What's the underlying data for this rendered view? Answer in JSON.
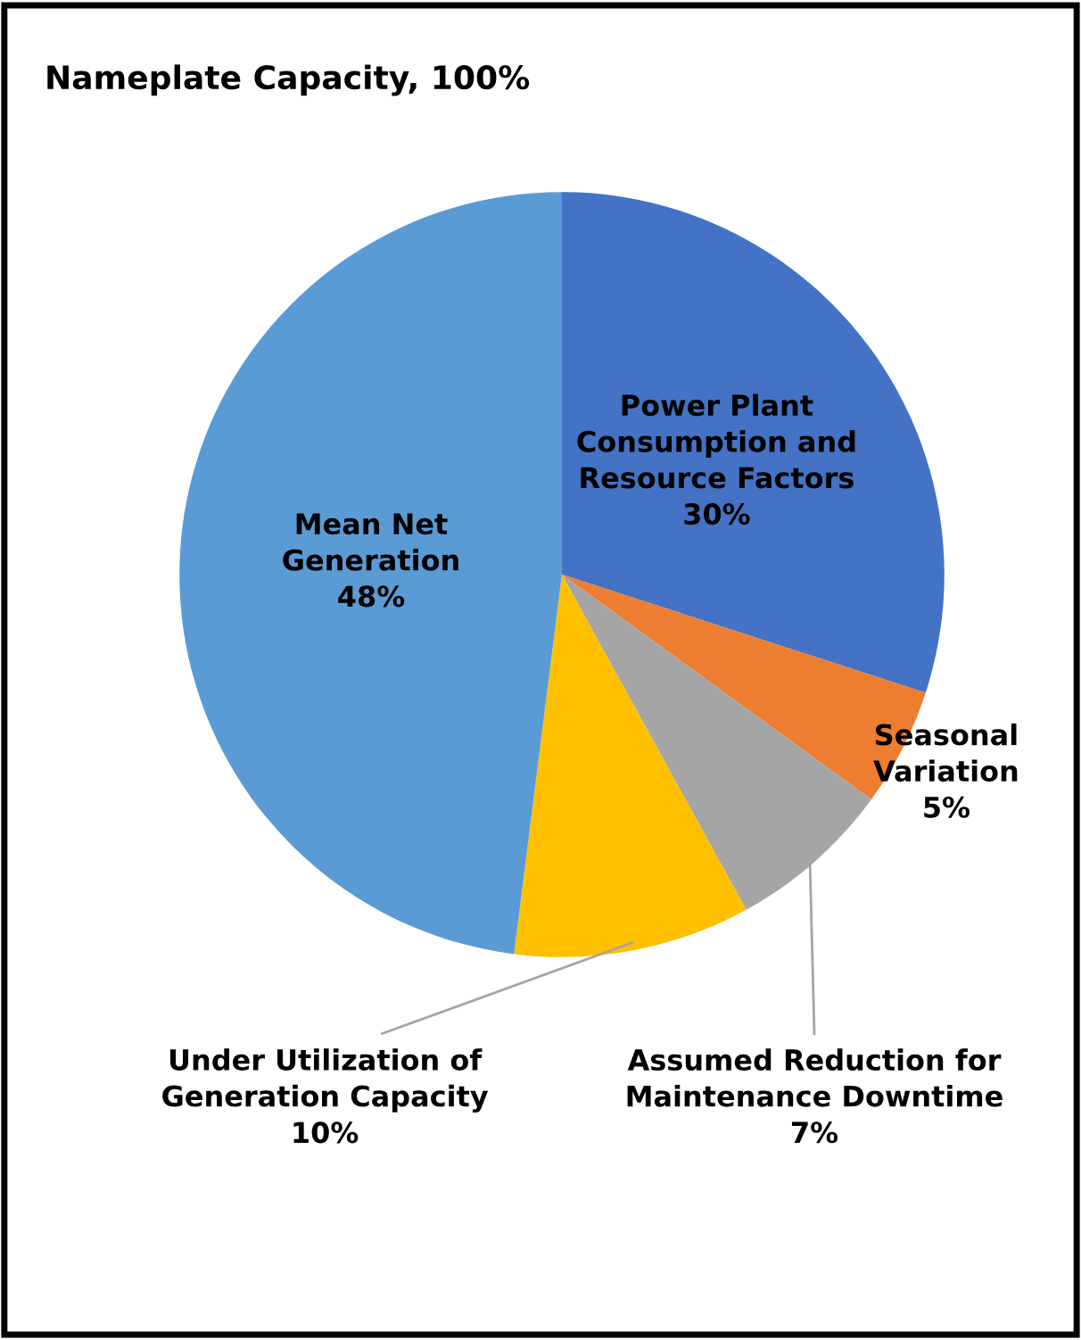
{
  "chart_data": {
    "type": "pie",
    "title": "Nameplate Capacity, 100%",
    "categories": [
      "Power Plant\nConsumption and\nResource Factors",
      "Seasonal\nVariation",
      "Assumed Reduction for\nMaintenance Downtime",
      "Under Utilization of\nGeneration Capacity",
      "Mean Net\nGeneration"
    ],
    "values": [
      30,
      5,
      7,
      10,
      48
    ],
    "colors": [
      "#4472c4",
      "#ed7d31",
      "#a5a5a5",
      "#ffc000",
      "#5b9bd5"
    ],
    "value_labels": [
      "30%",
      "5%",
      "7%",
      "10%",
      "48%"
    ]
  }
}
